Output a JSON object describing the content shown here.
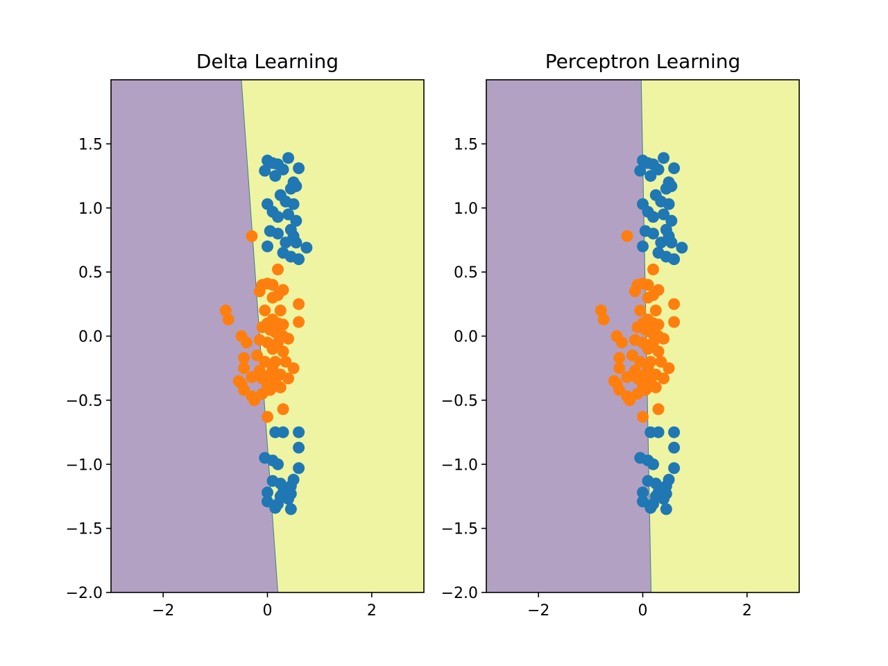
{
  "colors": {
    "class_a_point": "#1f77b4",
    "class_b_point": "#ff7f0e",
    "region_left": "#b3a1c4",
    "region_right": "#eef4a1",
    "axes_edge": "#000000"
  },
  "chart_data": [
    {
      "type": "scatter",
      "title": "Delta Learning",
      "xlabel": "",
      "ylabel": "",
      "xlim": [
        -3.0,
        3.0
      ],
      "ylim": [
        -2.0,
        2.0
      ],
      "x_ticks": [
        -2,
        0,
        2
      ],
      "x_tick_labels": [
        "−2",
        "0",
        "2"
      ],
      "y_ticks": [
        -2.0,
        -1.5,
        -1.0,
        -0.5,
        0.0,
        0.5,
        1.0,
        1.5
      ],
      "y_tick_labels": [
        "−2.0",
        "−1.5",
        "−1.0",
        "−0.5",
        "0.0",
        "0.5",
        "1.0",
        "1.5"
      ],
      "grid": false,
      "decision_boundary": {
        "x_at_y_top": -0.5,
        "x_at_y_bottom": 0.2
      },
      "regions": [
        "left",
        "right"
      ],
      "series": [
        {
          "name": "class_a",
          "color_key": "class_a_point",
          "points": [
            [
              0.0,
              1.37
            ],
            [
              0.1,
              1.35
            ],
            [
              0.2,
              1.34
            ],
            [
              0.4,
              1.39
            ],
            [
              -0.05,
              1.29
            ],
            [
              0.15,
              1.25
            ],
            [
              0.3,
              1.3
            ],
            [
              0.6,
              1.31
            ],
            [
              0.5,
              1.2
            ],
            [
              0.45,
              1.15
            ],
            [
              0.55,
              1.17
            ],
            [
              0.25,
              1.1
            ],
            [
              0.35,
              1.05
            ],
            [
              0.5,
              1.03
            ],
            [
              0.0,
              1.03
            ],
            [
              0.1,
              0.97
            ],
            [
              0.2,
              0.93
            ],
            [
              0.4,
              0.95
            ],
            [
              0.55,
              0.9
            ],
            [
              0.05,
              0.82
            ],
            [
              0.2,
              0.8
            ],
            [
              0.45,
              0.83
            ],
            [
              0.5,
              0.78
            ],
            [
              0.35,
              0.73
            ],
            [
              0.55,
              0.73
            ],
            [
              0.0,
              0.7
            ],
            [
              0.3,
              0.65
            ],
            [
              0.45,
              0.62
            ],
            [
              0.6,
              0.6
            ],
            [
              0.75,
              0.69
            ],
            [
              0.15,
              -0.75
            ],
            [
              0.3,
              -0.75
            ],
            [
              0.6,
              -0.75
            ],
            [
              0.6,
              -0.87
            ],
            [
              -0.05,
              -0.95
            ],
            [
              0.1,
              -0.97
            ],
            [
              0.2,
              -1.0
            ],
            [
              0.6,
              -1.03
            ],
            [
              0.5,
              -1.12
            ],
            [
              0.1,
              -1.13
            ],
            [
              0.25,
              -1.15
            ],
            [
              0.45,
              -1.17
            ],
            [
              0.0,
              -1.22
            ],
            [
              0.3,
              -1.22
            ],
            [
              0.45,
              -1.23
            ],
            [
              0.25,
              -1.25
            ],
            [
              0.4,
              -1.27
            ],
            [
              0.0,
              -1.29
            ],
            [
              0.15,
              -1.34
            ],
            [
              0.2,
              -1.31
            ],
            [
              0.45,
              -1.35
            ]
          ]
        },
        {
          "name": "class_b",
          "color_key": "class_b_point",
          "points": [
            [
              -0.3,
              0.78
            ],
            [
              0.2,
              0.52
            ],
            [
              -0.1,
              0.4
            ],
            [
              0.0,
              0.41
            ],
            [
              0.1,
              0.4
            ],
            [
              0.3,
              0.36
            ],
            [
              -0.15,
              0.35
            ],
            [
              0.1,
              0.3
            ],
            [
              0.2,
              0.32
            ],
            [
              -0.8,
              0.2
            ],
            [
              -0.05,
              0.2
            ],
            [
              0.25,
              0.2
            ],
            [
              -0.75,
              0.13
            ],
            [
              0.6,
              0.25
            ],
            [
              0.6,
              0.11
            ],
            [
              0.0,
              0.1
            ],
            [
              0.1,
              0.13
            ],
            [
              0.2,
              0.1
            ],
            [
              0.3,
              0.09
            ],
            [
              -0.1,
              0.07
            ],
            [
              0.05,
              0.05
            ],
            [
              0.15,
              0.03
            ],
            [
              0.3,
              0.0
            ],
            [
              -0.5,
              0.0
            ],
            [
              -0.15,
              -0.03
            ],
            [
              0.0,
              -0.05
            ],
            [
              0.2,
              -0.05
            ],
            [
              0.4,
              -0.02
            ],
            [
              -0.4,
              -0.05
            ],
            [
              0.1,
              -0.1
            ],
            [
              0.3,
              -0.12
            ],
            [
              -0.2,
              -0.15
            ],
            [
              -0.05,
              -0.2
            ],
            [
              0.15,
              -0.2
            ],
            [
              0.35,
              -0.2
            ],
            [
              -0.45,
              -0.17
            ],
            [
              0.1,
              -0.25
            ],
            [
              0.5,
              -0.25
            ],
            [
              -0.15,
              -0.27
            ],
            [
              0.05,
              -0.3
            ],
            [
              0.25,
              -0.3
            ],
            [
              -0.45,
              -0.25
            ],
            [
              -0.1,
              -0.33
            ],
            [
              0.15,
              -0.35
            ],
            [
              0.4,
              -0.33
            ],
            [
              -0.5,
              -0.37
            ],
            [
              -0.3,
              -0.32
            ],
            [
              0.0,
              -0.38
            ],
            [
              0.25,
              -0.4
            ],
            [
              -0.45,
              -0.42
            ],
            [
              -0.55,
              -0.35
            ],
            [
              -0.1,
              -0.45
            ],
            [
              0.05,
              -0.42
            ],
            [
              -0.3,
              -0.47
            ],
            [
              -0.25,
              -0.5
            ],
            [
              0.3,
              -0.57
            ],
            [
              0.0,
              -0.63
            ],
            [
              0.1,
              -0.4
            ]
          ]
        }
      ]
    },
    {
      "type": "scatter",
      "title": "Perceptron Learning",
      "xlabel": "",
      "ylabel": "",
      "xlim": [
        -3.0,
        3.0
      ],
      "ylim": [
        -2.0,
        2.0
      ],
      "x_ticks": [
        -2,
        0,
        2
      ],
      "x_tick_labels": [
        "−2",
        "0",
        "2"
      ],
      "y_ticks": [
        -2.0,
        -1.5,
        -1.0,
        -0.5,
        0.0,
        0.5,
        1.0,
        1.5
      ],
      "y_tick_labels": [
        "−2.0",
        "−1.5",
        "−1.0",
        "−0.5",
        "0.0",
        "0.5",
        "1.0",
        "1.5"
      ],
      "grid": false,
      "decision_boundary": {
        "x_at_y_top": -0.03,
        "x_at_y_bottom": 0.16
      },
      "regions": [
        "left",
        "right"
      ],
      "series": [
        {
          "name": "class_a",
          "color_key": "class_a_point",
          "points": [
            [
              0.0,
              1.37
            ],
            [
              0.1,
              1.35
            ],
            [
              0.2,
              1.34
            ],
            [
              0.4,
              1.39
            ],
            [
              -0.05,
              1.29
            ],
            [
              0.15,
              1.25
            ],
            [
              0.3,
              1.3
            ],
            [
              0.6,
              1.31
            ],
            [
              0.5,
              1.2
            ],
            [
              0.45,
              1.15
            ],
            [
              0.55,
              1.17
            ],
            [
              0.25,
              1.1
            ],
            [
              0.35,
              1.05
            ],
            [
              0.5,
              1.03
            ],
            [
              0.0,
              1.03
            ],
            [
              0.1,
              0.97
            ],
            [
              0.2,
              0.93
            ],
            [
              0.4,
              0.95
            ],
            [
              0.55,
              0.9
            ],
            [
              0.05,
              0.82
            ],
            [
              0.2,
              0.8
            ],
            [
              0.45,
              0.83
            ],
            [
              0.5,
              0.78
            ],
            [
              0.35,
              0.73
            ],
            [
              0.55,
              0.73
            ],
            [
              0.0,
              0.7
            ],
            [
              0.3,
              0.65
            ],
            [
              0.45,
              0.62
            ],
            [
              0.6,
              0.6
            ],
            [
              0.75,
              0.69
            ],
            [
              0.15,
              -0.75
            ],
            [
              0.3,
              -0.75
            ],
            [
              0.6,
              -0.75
            ],
            [
              0.6,
              -0.87
            ],
            [
              -0.05,
              -0.95
            ],
            [
              0.1,
              -0.97
            ],
            [
              0.2,
              -1.0
            ],
            [
              0.6,
              -1.03
            ],
            [
              0.5,
              -1.12
            ],
            [
              0.1,
              -1.13
            ],
            [
              0.25,
              -1.15
            ],
            [
              0.45,
              -1.17
            ],
            [
              0.0,
              -1.22
            ],
            [
              0.3,
              -1.22
            ],
            [
              0.45,
              -1.23
            ],
            [
              0.25,
              -1.25
            ],
            [
              0.4,
              -1.27
            ],
            [
              0.0,
              -1.29
            ],
            [
              0.15,
              -1.34
            ],
            [
              0.2,
              -1.31
            ],
            [
              0.45,
              -1.35
            ]
          ]
        },
        {
          "name": "class_b",
          "color_key": "class_b_point",
          "points": [
            [
              -0.3,
              0.78
            ],
            [
              0.2,
              0.52
            ],
            [
              -0.1,
              0.4
            ],
            [
              0.0,
              0.41
            ],
            [
              0.1,
              0.4
            ],
            [
              0.3,
              0.36
            ],
            [
              -0.15,
              0.35
            ],
            [
              0.1,
              0.3
            ],
            [
              0.2,
              0.32
            ],
            [
              -0.8,
              0.2
            ],
            [
              -0.05,
              0.2
            ],
            [
              0.25,
              0.2
            ],
            [
              -0.75,
              0.13
            ],
            [
              0.6,
              0.25
            ],
            [
              0.6,
              0.11
            ],
            [
              0.0,
              0.1
            ],
            [
              0.1,
              0.13
            ],
            [
              0.2,
              0.1
            ],
            [
              0.3,
              0.09
            ],
            [
              -0.1,
              0.07
            ],
            [
              0.05,
              0.05
            ],
            [
              0.15,
              0.03
            ],
            [
              0.3,
              0.0
            ],
            [
              -0.5,
              0.0
            ],
            [
              -0.15,
              -0.03
            ],
            [
              0.0,
              -0.05
            ],
            [
              0.2,
              -0.05
            ],
            [
              0.4,
              -0.02
            ],
            [
              -0.4,
              -0.05
            ],
            [
              0.1,
              -0.1
            ],
            [
              0.3,
              -0.12
            ],
            [
              -0.2,
              -0.15
            ],
            [
              -0.05,
              -0.2
            ],
            [
              0.15,
              -0.2
            ],
            [
              0.35,
              -0.2
            ],
            [
              -0.45,
              -0.17
            ],
            [
              0.1,
              -0.25
            ],
            [
              0.5,
              -0.25
            ],
            [
              -0.15,
              -0.27
            ],
            [
              0.05,
              -0.3
            ],
            [
              0.25,
              -0.3
            ],
            [
              -0.45,
              -0.25
            ],
            [
              -0.1,
              -0.33
            ],
            [
              0.15,
              -0.35
            ],
            [
              0.4,
              -0.33
            ],
            [
              -0.5,
              -0.37
            ],
            [
              -0.3,
              -0.32
            ],
            [
              0.0,
              -0.38
            ],
            [
              0.25,
              -0.4
            ],
            [
              -0.45,
              -0.42
            ],
            [
              -0.55,
              -0.35
            ],
            [
              -0.1,
              -0.45
            ],
            [
              0.05,
              -0.42
            ],
            [
              -0.3,
              -0.47
            ],
            [
              -0.25,
              -0.5
            ],
            [
              0.3,
              -0.57
            ],
            [
              0.0,
              -0.63
            ],
            [
              0.1,
              -0.4
            ]
          ]
        }
      ]
    }
  ]
}
